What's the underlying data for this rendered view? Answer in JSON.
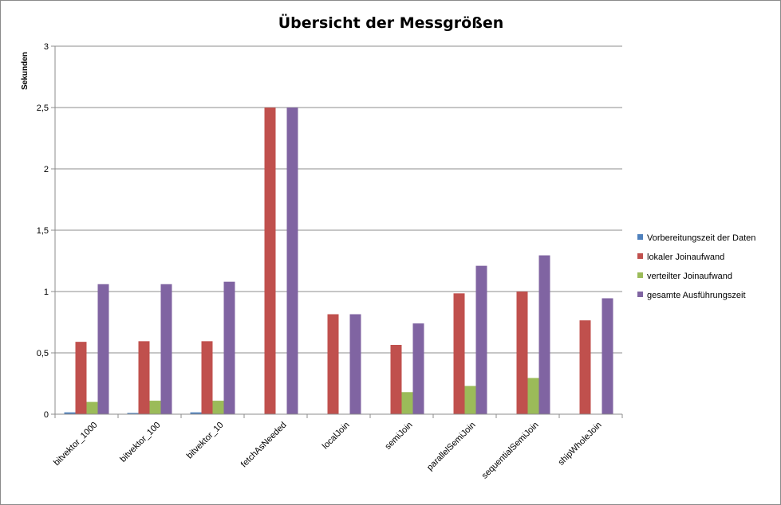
{
  "chart_data": {
    "type": "bar",
    "title": "Übersicht der Messgrößen",
    "xlabel": "",
    "ylabel": "Sekunden",
    "ylim": [
      0,
      3
    ],
    "yticks": [
      0,
      0.5,
      1,
      1.5,
      2,
      2.5,
      3
    ],
    "ytick_labels": [
      "0",
      "0,5",
      "1",
      "1,5",
      "2",
      "2,5",
      "3"
    ],
    "grid": true,
    "legend_position": "right",
    "categories": [
      "bitvektor_1000",
      "bitvektor_100",
      "bitvektor_10",
      "fetchAsNeeded",
      "localJoin",
      "semiJoin",
      "parallelSemiJoin",
      "sequentialSemiJoin",
      "shipWholeJoin"
    ],
    "series": [
      {
        "name": "Vorbereitungszeit der Daten",
        "color": "#4f81bd",
        "values": [
          0.015,
          0.01,
          0.015,
          0,
          0,
          0,
          0,
          0,
          0
        ]
      },
      {
        "name": "lokaler Joinaufwand",
        "color": "#c0504d",
        "values": [
          0.59,
          0.595,
          0.595,
          2.5,
          0.815,
          0.565,
          0.985,
          1.0,
          0.765
        ]
      },
      {
        "name": "verteilter Joinaufwand",
        "color": "#9bbb59",
        "values": [
          0.1,
          0.11,
          0.11,
          0,
          0,
          0.18,
          0.23,
          0.295,
          0
        ]
      },
      {
        "name": "gesamte Ausführungszeit",
        "color": "#8064a2",
        "values": [
          1.06,
          1.06,
          1.08,
          2.5,
          0.815,
          0.74,
          1.21,
          1.295,
          0.945
        ]
      }
    ]
  }
}
